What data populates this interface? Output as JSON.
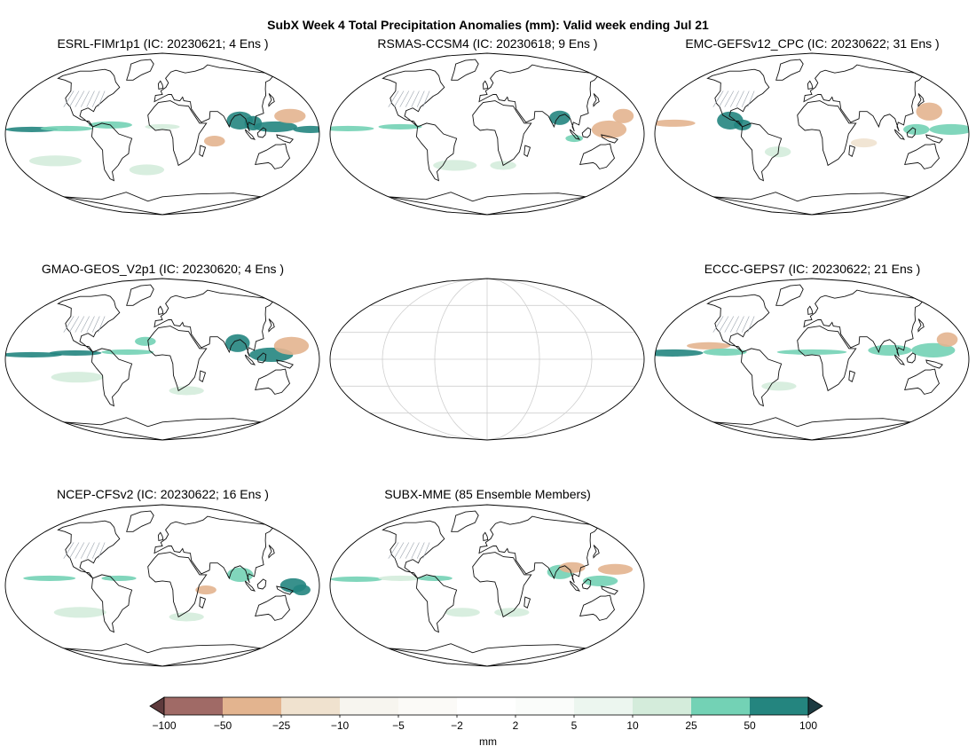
{
  "title": "SubX Week 4 Total Precipitation Anomalies (mm): Valid week ending Jul 21",
  "panels": [
    {
      "id": "esrl",
      "title": "ESRL-FIMr1p1 (IC: 20230621; 4 Ens )",
      "empty": false
    },
    {
      "id": "rsmas",
      "title": "RSMAS-CCSM4 (IC: 20230618; 9 Ens )",
      "empty": false
    },
    {
      "id": "emc",
      "title": "EMC-GEFSv12_CPC (IC: 20230622; 31 Ens )",
      "empty": false
    },
    {
      "id": "gmao",
      "title": "GMAO-GEOS_V2p1 (IC: 20230620; 4 Ens )",
      "empty": false
    },
    {
      "id": "blank",
      "title": "",
      "empty": true
    },
    {
      "id": "eccc",
      "title": "ECCC-GEPS7 (IC: 20230622; 21 Ens )",
      "empty": false
    },
    {
      "id": "ncep",
      "title": "NCEP-CFSv2 (IC: 20230622; 16 Ens )",
      "empty": false
    },
    {
      "id": "mme",
      "title": "SUBX-MME (85 Ensemble Members)",
      "empty": false
    }
  ],
  "colorbar": {
    "levels": [
      "−100",
      "−50",
      "−25",
      "−10",
      "−5",
      "−2",
      "2",
      "5",
      "10",
      "25",
      "50",
      "100"
    ],
    "colors": [
      "#a06a66",
      "#e3b48f",
      "#f0e2cf",
      "#f7f5ef",
      "#fbfaf7",
      "#ffffff",
      "#fafcfa",
      "#ecf6ef",
      "#d4ecdb",
      "#73d2b5",
      "#24857f"
    ],
    "under_color": "#5e3a3c",
    "over_color": "#1d3b41",
    "unit": "mm",
    "extend": "both"
  }
}
